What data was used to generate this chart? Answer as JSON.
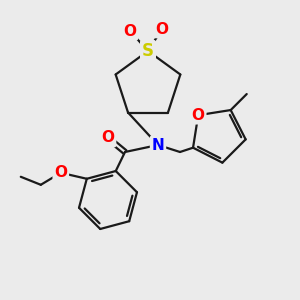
{
  "bg_color": "#ebebeb",
  "bond_color": "#1a1a1a",
  "bond_width": 1.6,
  "atom_colors": {
    "S": "#cccc00",
    "O": "#ff0000",
    "N": "#0000ff",
    "C": "#1a1a1a"
  },
  "font_size_atom": 10,
  "figsize": [
    3.0,
    3.0
  ],
  "dpi": 100
}
